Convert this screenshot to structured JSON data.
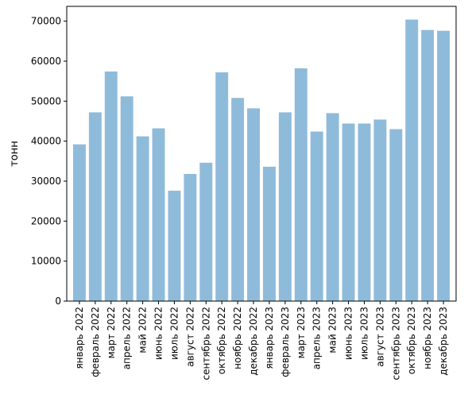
{
  "chart_data": {
    "type": "bar",
    "title": "",
    "xlabel": "",
    "ylabel": "тонн",
    "ylim": [
      0,
      73700
    ],
    "yticks": [
      0,
      10000,
      20000,
      30000,
      40000,
      50000,
      60000,
      70000
    ],
    "grid": false,
    "bar_color": "#8fbbdb",
    "categories": [
      "январь 2022",
      "февраль 2022",
      "март 2022",
      "апрель 2022",
      "май 2022",
      "июнь 2022",
      "июль 2022",
      "август 2022",
      "сентябрь 2022",
      "октябрь 2022",
      "ноябрь 2022",
      "декабрь 2022",
      "январь 2023",
      "февраль 2023",
      "март 2023",
      "апрель 2023",
      "май 2023",
      "июнь 2023",
      "июль 2023",
      "август 2023",
      "сентябрь 2023",
      "октябрь 2023",
      "ноябрь 2023",
      "декабрь 2023"
    ],
    "values": [
      39200,
      47200,
      57400,
      51200,
      41200,
      43200,
      27600,
      31800,
      34600,
      57200,
      50800,
      48200,
      33600,
      47200,
      58200,
      42400,
      47000,
      44400,
      44400,
      45400,
      43000,
      70400,
      67800,
      67600
    ]
  }
}
